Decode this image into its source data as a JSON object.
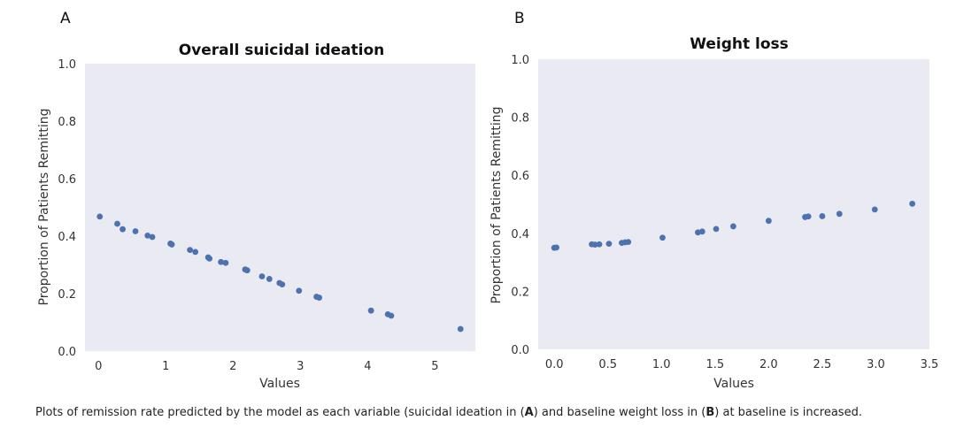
{
  "caption": {
    "part1": "Plots of remission rate predicted by the model as each variable (suicidal ideation in (",
    "bold1": "A",
    "part2": ") and baseline weight loss in (",
    "bold2": "B",
    "part3": ") at baseline is increased."
  },
  "colors": {
    "plot_background": "#EAEAF2",
    "marker": "#4C72B0"
  },
  "chart_data": [
    {
      "panel": "A",
      "type": "scatter",
      "title": "Overall suicidal ideation",
      "xlabel": "Values",
      "ylabel": "Proportion of Patients Remitting",
      "xlim": [
        -0.2,
        5.6
      ],
      "ylim": [
        0,
        1.0
      ],
      "xticks": [
        0,
        1,
        2,
        3,
        4,
        5
      ],
      "xtick_labels": [
        "0",
        "1",
        "2",
        "3",
        "4",
        "5"
      ],
      "yticks": [
        0,
        0.2,
        0.4,
        0.6,
        0.8,
        1.0
      ],
      "ytick_labels": [
        "0.0",
        "0.2",
        "0.4",
        "0.6",
        "0.8",
        "1.0"
      ],
      "grid": false,
      "points": [
        {
          "x": 0.02,
          "y": 0.468
        },
        {
          "x": 0.28,
          "y": 0.443
        },
        {
          "x": 0.36,
          "y": 0.424
        },
        {
          "x": 0.55,
          "y": 0.417
        },
        {
          "x": 0.73,
          "y": 0.402
        },
        {
          "x": 0.8,
          "y": 0.397
        },
        {
          "x": 1.07,
          "y": 0.374
        },
        {
          "x": 1.09,
          "y": 0.371
        },
        {
          "x": 1.36,
          "y": 0.352
        },
        {
          "x": 1.44,
          "y": 0.345
        },
        {
          "x": 1.63,
          "y": 0.326
        },
        {
          "x": 1.65,
          "y": 0.322
        },
        {
          "x": 1.82,
          "y": 0.31
        },
        {
          "x": 1.89,
          "y": 0.307
        },
        {
          "x": 2.18,
          "y": 0.284
        },
        {
          "x": 2.21,
          "y": 0.281
        },
        {
          "x": 2.43,
          "y": 0.26
        },
        {
          "x": 2.54,
          "y": 0.251
        },
        {
          "x": 2.69,
          "y": 0.237
        },
        {
          "x": 2.73,
          "y": 0.232
        },
        {
          "x": 2.98,
          "y": 0.21
        },
        {
          "x": 3.24,
          "y": 0.189
        },
        {
          "x": 3.28,
          "y": 0.186
        },
        {
          "x": 4.05,
          "y": 0.141
        },
        {
          "x": 4.3,
          "y": 0.128
        },
        {
          "x": 4.35,
          "y": 0.123
        },
        {
          "x": 5.38,
          "y": 0.077
        }
      ]
    },
    {
      "panel": "B",
      "type": "scatter",
      "title": "Weight loss",
      "xlabel": "Values",
      "ylabel": "Proportion of Patients Remitting",
      "xlim": [
        -0.15,
        3.5
      ],
      "ylim": [
        0,
        1.0
      ],
      "xticks": [
        0.0,
        0.5,
        1.0,
        1.5,
        2.0,
        2.5,
        3.0,
        3.5
      ],
      "xtick_labels": [
        "0.0",
        "0.5",
        "1.0",
        "1.5",
        "2.0",
        "2.5",
        "3.0",
        "3.5"
      ],
      "yticks": [
        0,
        0.2,
        0.4,
        0.6,
        0.8,
        1.0
      ],
      "ytick_labels": [
        "0.0",
        "0.2",
        "0.4",
        "0.6",
        "0.8",
        "1.0"
      ],
      "grid": false,
      "points": [
        {
          "x": 0.0,
          "y": 0.35
        },
        {
          "x": 0.02,
          "y": 0.351
        },
        {
          "x": 0.35,
          "y": 0.362
        },
        {
          "x": 0.38,
          "y": 0.361
        },
        {
          "x": 0.42,
          "y": 0.362
        },
        {
          "x": 0.51,
          "y": 0.364
        },
        {
          "x": 0.63,
          "y": 0.367
        },
        {
          "x": 0.66,
          "y": 0.369
        },
        {
          "x": 0.69,
          "y": 0.37
        },
        {
          "x": 1.01,
          "y": 0.385
        },
        {
          "x": 1.34,
          "y": 0.403
        },
        {
          "x": 1.38,
          "y": 0.406
        },
        {
          "x": 1.51,
          "y": 0.415
        },
        {
          "x": 1.67,
          "y": 0.424
        },
        {
          "x": 2.0,
          "y": 0.443
        },
        {
          "x": 2.34,
          "y": 0.456
        },
        {
          "x": 2.37,
          "y": 0.458
        },
        {
          "x": 2.5,
          "y": 0.459
        },
        {
          "x": 2.66,
          "y": 0.467
        },
        {
          "x": 2.99,
          "y": 0.482
        },
        {
          "x": 3.34,
          "y": 0.502
        }
      ]
    }
  ]
}
